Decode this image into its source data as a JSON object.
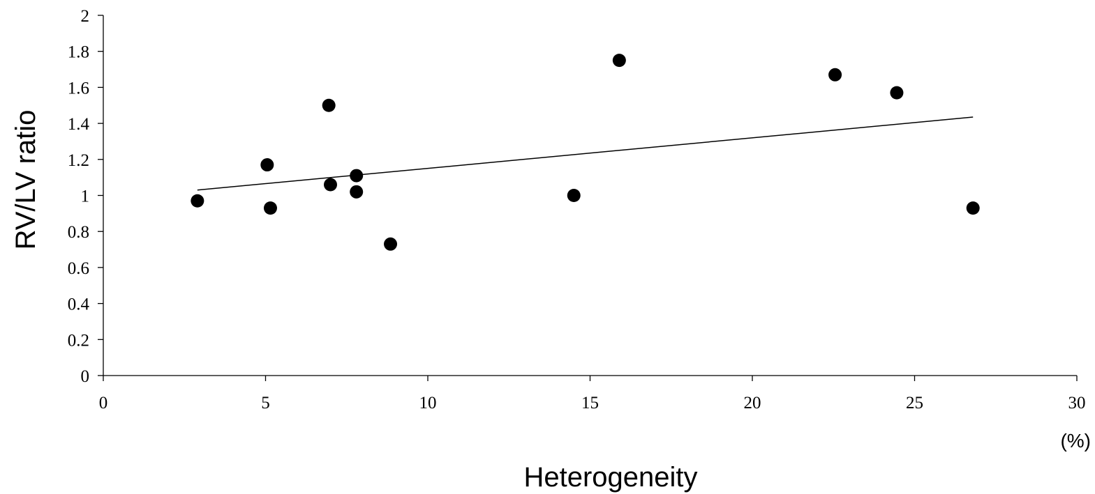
{
  "chart_data": {
    "type": "scatter",
    "title": "",
    "xlabel": "Heterogeneity",
    "ylabel": "RV/LV ratio",
    "x_unit": "(%)",
    "xlim": [
      0,
      30
    ],
    "ylim": [
      0,
      2
    ],
    "x_ticks": [
      0,
      5,
      10,
      15,
      20,
      25,
      30
    ],
    "y_ticks": [
      0,
      0.2,
      0.4,
      0.6,
      0.8,
      1,
      1.2,
      1.4,
      1.6,
      1.8,
      2
    ],
    "x_tick_labels": [
      "0",
      "5",
      "10",
      "15",
      "20",
      "25",
      "30"
    ],
    "y_tick_labels": [
      "0",
      "0.2",
      "0.4",
      "0.6",
      "0.8",
      "1",
      "1.2",
      "1.4",
      "1.6",
      "1.8",
      "2"
    ],
    "grid": false,
    "legend": "none",
    "series": [
      {
        "points": [
          {
            "x": 2.9,
            "y": 0.97
          },
          {
            "x": 5.05,
            "y": 1.17
          },
          {
            "x": 5.15,
            "y": 0.93
          },
          {
            "x": 6.95,
            "y": 1.5
          },
          {
            "x": 7.0,
            "y": 1.06
          },
          {
            "x": 7.8,
            "y": 1.11
          },
          {
            "x": 7.8,
            "y": 1.02
          },
          {
            "x": 8.85,
            "y": 0.73
          },
          {
            "x": 14.5,
            "y": 1.0
          },
          {
            "x": 15.9,
            "y": 1.75
          },
          {
            "x": 22.55,
            "y": 1.67
          },
          {
            "x": 24.45,
            "y": 1.57
          },
          {
            "x": 26.8,
            "y": 0.93
          }
        ]
      }
    ],
    "trendline": {
      "type": "linear",
      "x": [
        2.9,
        26.8
      ],
      "y": [
        1.03,
        1.435
      ]
    },
    "colors": {
      "points": "#000000",
      "axis": "#000000",
      "trendline": "#000000"
    }
  }
}
